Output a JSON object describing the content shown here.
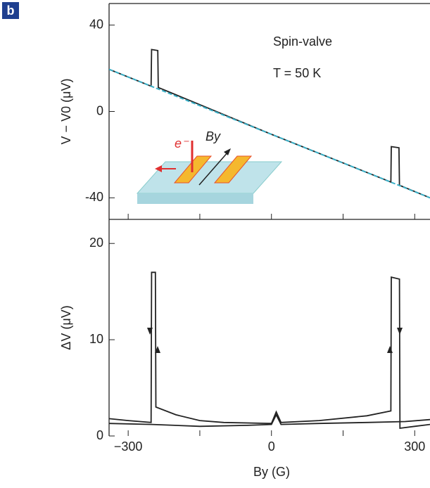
{
  "panel_label": "b",
  "chart_data": [
    {
      "type": "line",
      "ylabel": "V − V0 (μV)",
      "annotations": [
        "Spin-valve",
        "T = 50 K"
      ],
      "inset_labels": [
        "e⁻",
        "By"
      ],
      "xlim": [
        -340,
        332
      ],
      "xticks": [
        -300,
        -150,
        0,
        150,
        300
      ],
      "ylim": [
        -50,
        50
      ],
      "yticks": [
        -40,
        0,
        40
      ],
      "series": [
        {
          "color": "#222222",
          "dash": false,
          "x": [
            -340,
            -252,
            -251,
            -238,
            -237,
            0,
            250,
            251,
            267,
            268,
            332
          ],
          "values": [
            19.5,
            11.7,
            28.7,
            28.2,
            11.1,
            -10.6,
            -32.7,
            -16.3,
            -16.8,
            -34.2,
            -40
          ]
        },
        {
          "color": "#3ab0c8",
          "dash": true,
          "x": [
            -340,
            332
          ],
          "values": [
            19.5,
            -40
          ]
        }
      ]
    },
    {
      "type": "line",
      "xlabel": "By (G)",
      "ylabel": "ΔV (μV)",
      "xlim": [
        -340,
        332
      ],
      "xticks": [
        -300,
        -150,
        0,
        150,
        300
      ],
      "xticklabels": [
        {
          "value": -300,
          "label": "−300"
        },
        {
          "value": 0,
          "label": "0"
        },
        {
          "value": 300,
          "label": "300"
        }
      ],
      "ylim": [
        0,
        22.5
      ],
      "yticks": [
        0,
        10,
        20
      ],
      "series": [
        {
          "color": "#222222",
          "dash": false,
          "x": [
            -340,
            -300,
            -252,
            -251,
            -243,
            -242,
            -200,
            -150,
            -100,
            0,
            10,
            20,
            100,
            200,
            250,
            251,
            268,
            269,
            300,
            332
          ],
          "values": [
            1.8,
            1.6,
            1.4,
            17,
            17,
            3,
            2.2,
            1.6,
            1.4,
            1.3,
            2.5,
            1.4,
            1.6,
            2.1,
            2.6,
            16.5,
            16.3,
            0.8,
            1.0,
            1.2
          ]
        },
        {
          "color": "#222222",
          "dash": false,
          "x": [
            -340,
            -250,
            -150,
            -50,
            0,
            10,
            20,
            100,
            200,
            280,
            332
          ],
          "values": [
            1.3,
            1.2,
            1.0,
            1.1,
            1.2,
            2.2,
            1.2,
            1.3,
            1.4,
            1.5,
            1.7
          ]
        }
      ]
    }
  ]
}
